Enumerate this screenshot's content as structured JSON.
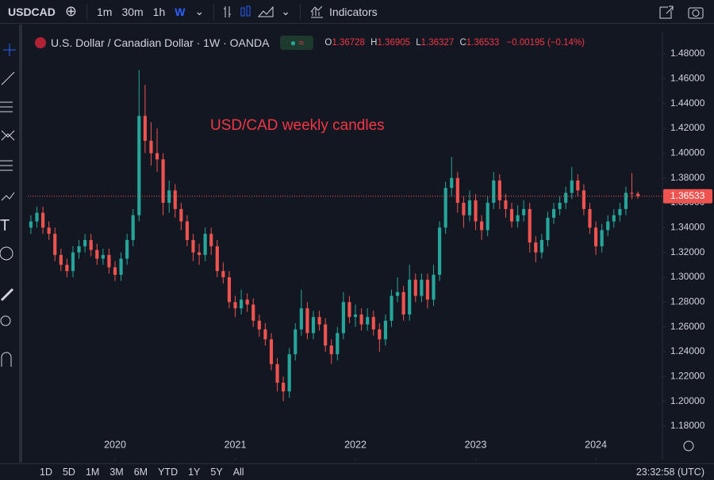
{
  "toolbar": {
    "symbol": "USDCAD",
    "intervals": [
      "1m",
      "30m",
      "1h",
      "W"
    ],
    "indicators": "Indicators"
  },
  "footer": {
    "ranges": [
      "1D",
      "5D",
      "1M",
      "3M",
      "6M",
      "YTD",
      "1Y",
      "5Y",
      "All"
    ],
    "clock": "23:32:58 (UTC)"
  },
  "chart_data": {
    "type": "candlestick",
    "title": "U.S. Dollar / Canadian Dollar · 1W · OANDA",
    "annotation": "USD/CAD weekly candles",
    "legend_labels": [
      "O",
      "H",
      "L",
      "C"
    ],
    "change_label": "−0.00195 (−0.14%)",
    "up_color": "#26a69a",
    "down_color": "#ef5350",
    "last_price_line": true,
    "xlim": [
      2019.274,
      2024.554
    ],
    "xticks": [
      2020,
      2021,
      2022,
      2023,
      2024
    ],
    "ylim": [
      1.1545,
      1.4979
    ],
    "yticks": [
      {
        "value": 1.18,
        "label": "1.18000"
      },
      {
        "value": 1.2,
        "label": "1.20000"
      },
      {
        "value": 1.22,
        "label": "1.22000"
      },
      {
        "value": 1.24,
        "label": "1.24000"
      },
      {
        "value": 1.26,
        "label": "1.26000"
      },
      {
        "value": 1.28,
        "label": "1.28000"
      },
      {
        "value": 1.3,
        "label": "1.30000"
      },
      {
        "value": 1.32,
        "label": "1.32000"
      },
      {
        "value": 1.34,
        "label": "1.34000"
      },
      {
        "value": 1.36,
        "label": "1.36000"
      },
      {
        "value": 1.38,
        "label": "1.38000"
      },
      {
        "value": 1.4,
        "label": "1.40000"
      },
      {
        "value": 1.42,
        "label": "1.42000"
      },
      {
        "value": 1.44,
        "label": "1.44000"
      },
      {
        "value": 1.46,
        "label": "1.46000"
      },
      {
        "value": 1.48,
        "label": "1.48000"
      }
    ],
    "x": [
      2019.3,
      2019.35,
      2019.4,
      2019.45,
      2019.5,
      2019.55,
      2019.6,
      2019.65,
      2019.7,
      2019.75,
      2019.8,
      2019.85,
      2019.9,
      2019.95,
      2020.0,
      2020.05,
      2020.1,
      2020.15,
      2020.2,
      2020.25,
      2020.3,
      2020.35,
      2020.4,
      2020.45,
      2020.5,
      2020.55,
      2020.6,
      2020.65,
      2020.7,
      2020.75,
      2020.8,
      2020.85,
      2020.9,
      2020.95,
      2021.0,
      2021.05,
      2021.1,
      2021.15,
      2021.2,
      2021.25,
      2021.3,
      2021.35,
      2021.4,
      2021.45,
      2021.5,
      2021.55,
      2021.6,
      2021.65,
      2021.7,
      2021.75,
      2021.8,
      2021.85,
      2021.9,
      2021.95,
      2022.0,
      2022.05,
      2022.1,
      2022.15,
      2022.2,
      2022.25,
      2022.3,
      2022.35,
      2022.4,
      2022.45,
      2022.5,
      2022.55,
      2022.6,
      2022.65,
      2022.7,
      2022.75,
      2022.8,
      2022.85,
      2022.9,
      2022.95,
      2023.0,
      2023.05,
      2023.1,
      2023.15,
      2023.2,
      2023.25,
      2023.3,
      2023.35,
      2023.4,
      2023.45,
      2023.5,
      2023.55,
      2023.6,
      2023.65,
      2023.7,
      2023.75,
      2023.8,
      2023.85,
      2023.9,
      2023.95,
      2024.0,
      2024.05,
      2024.1,
      2024.15,
      2024.2,
      2024.25,
      2024.3,
      2024.35
    ],
    "open": [
      1.34,
      1.345,
      1.352,
      1.34,
      1.335,
      1.318,
      1.31,
      1.305,
      1.32,
      1.325,
      1.33,
      1.322,
      1.315,
      1.318,
      1.308,
      1.302,
      1.315,
      1.33,
      1.35,
      1.43,
      1.41,
      1.4,
      1.395,
      1.36,
      1.37,
      1.355,
      1.345,
      1.33,
      1.32,
      1.318,
      1.335,
      1.325,
      1.305,
      1.3,
      1.28,
      1.275,
      1.282,
      1.278,
      1.265,
      1.258,
      1.25,
      1.23,
      1.215,
      1.208,
      1.238,
      1.258,
      1.275,
      1.255,
      1.268,
      1.262,
      1.245,
      1.238,
      1.255,
      1.28,
      1.268,
      1.27,
      1.262,
      1.268,
      1.258,
      1.25,
      1.265,
      1.285,
      1.288,
      1.27,
      1.298,
      1.285,
      1.298,
      1.282,
      1.302,
      1.34,
      1.372,
      1.38,
      1.36,
      1.35,
      1.362,
      1.345,
      1.338,
      1.36,
      1.378,
      1.362,
      1.355,
      1.345,
      1.35,
      1.355,
      1.328,
      1.32,
      1.33,
      1.348,
      1.355,
      1.36,
      1.368,
      1.378,
      1.37,
      1.355,
      1.34,
      1.325,
      1.338,
      1.345,
      1.35,
      1.355,
      1.368,
      1.36728
    ],
    "high": [
      1.35,
      1.357,
      1.357,
      1.345,
      1.34,
      1.323,
      1.315,
      1.325,
      1.33,
      1.335,
      1.335,
      1.327,
      1.323,
      1.323,
      1.313,
      1.32,
      1.335,
      1.355,
      1.467,
      1.455,
      1.425,
      1.42,
      1.4,
      1.378,
      1.375,
      1.36,
      1.35,
      1.335,
      1.327,
      1.34,
      1.34,
      1.33,
      1.312,
      1.305,
      1.285,
      1.29,
      1.287,
      1.283,
      1.27,
      1.263,
      1.255,
      1.235,
      1.22,
      1.243,
      1.263,
      1.29,
      1.28,
      1.273,
      1.273,
      1.267,
      1.25,
      1.26,
      1.288,
      1.285,
      1.278,
      1.275,
      1.275,
      1.273,
      1.263,
      1.27,
      1.29,
      1.3,
      1.293,
      1.31,
      1.303,
      1.303,
      1.303,
      1.31,
      1.345,
      1.377,
      1.397,
      1.385,
      1.365,
      1.37,
      1.367,
      1.35,
      1.365,
      1.385,
      1.383,
      1.367,
      1.36,
      1.358,
      1.362,
      1.36,
      1.333,
      1.335,
      1.353,
      1.36,
      1.365,
      1.373,
      1.389,
      1.383,
      1.375,
      1.36,
      1.345,
      1.343,
      1.35,
      1.355,
      1.36,
      1.373,
      1.384,
      1.36905
    ],
    "low": [
      1.335,
      1.34,
      1.335,
      1.33,
      1.313,
      1.305,
      1.3,
      1.3,
      1.315,
      1.32,
      1.317,
      1.31,
      1.31,
      1.303,
      1.297,
      1.297,
      1.31,
      1.325,
      1.345,
      1.4,
      1.39,
      1.385,
      1.35,
      1.352,
      1.348,
      1.338,
      1.325,
      1.313,
      1.31,
      1.313,
      1.318,
      1.3,
      1.295,
      1.275,
      1.268,
      1.27,
      1.272,
      1.26,
      1.252,
      1.245,
      1.225,
      1.208,
      1.2,
      1.203,
      1.233,
      1.253,
      1.25,
      1.25,
      1.257,
      1.24,
      1.23,
      1.233,
      1.25,
      1.263,
      1.26,
      1.257,
      1.257,
      1.253,
      1.24,
      1.245,
      1.26,
      1.28,
      1.265,
      1.265,
      1.28,
      1.28,
      1.275,
      1.277,
      1.297,
      1.335,
      1.365,
      1.352,
      1.34,
      1.345,
      1.338,
      1.33,
      1.333,
      1.355,
      1.355,
      1.348,
      1.34,
      1.34,
      1.345,
      1.32,
      1.312,
      1.315,
      1.325,
      1.343,
      1.35,
      1.355,
      1.363,
      1.365,
      1.35,
      1.335,
      1.318,
      1.32,
      1.333,
      1.34,
      1.345,
      1.35,
      1.363,
      1.36327
    ],
    "close": [
      1.345,
      1.352,
      1.34,
      1.335,
      1.318,
      1.31,
      1.305,
      1.32,
      1.325,
      1.33,
      1.322,
      1.315,
      1.318,
      1.308,
      1.302,
      1.315,
      1.33,
      1.35,
      1.43,
      1.41,
      1.4,
      1.395,
      1.36,
      1.37,
      1.355,
      1.345,
      1.33,
      1.32,
      1.318,
      1.335,
      1.325,
      1.305,
      1.3,
      1.28,
      1.275,
      1.282,
      1.278,
      1.265,
      1.258,
      1.25,
      1.23,
      1.215,
      1.208,
      1.238,
      1.258,
      1.275,
      1.255,
      1.268,
      1.262,
      1.245,
      1.238,
      1.255,
      1.28,
      1.268,
      1.27,
      1.262,
      1.268,
      1.258,
      1.25,
      1.265,
      1.285,
      1.288,
      1.27,
      1.298,
      1.285,
      1.298,
      1.282,
      1.302,
      1.34,
      1.372,
      1.38,
      1.36,
      1.35,
      1.362,
      1.345,
      1.338,
      1.36,
      1.378,
      1.362,
      1.355,
      1.345,
      1.35,
      1.355,
      1.328,
      1.32,
      1.33,
      1.348,
      1.355,
      1.36,
      1.368,
      1.378,
      1.37,
      1.355,
      1.34,
      1.325,
      1.338,
      1.345,
      1.35,
      1.355,
      1.368,
      1.36728,
      1.36533
    ]
  }
}
